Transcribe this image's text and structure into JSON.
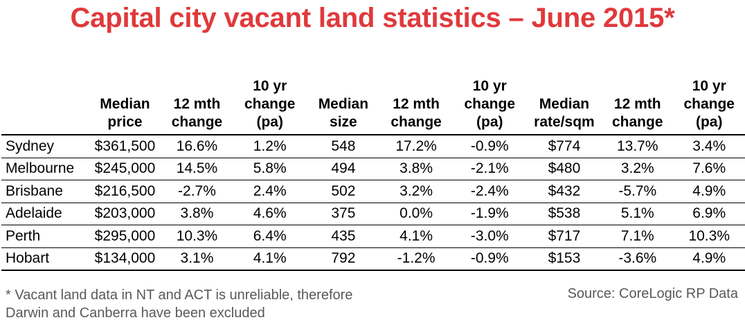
{
  "chart_data": {
    "type": "table",
    "title": "Capital city vacant land statistics – June 2015*",
    "columns": [
      "",
      "Median\nprice",
      "12 mth\nchange",
      "10 yr\nchange\n(pa)",
      "Median\nsize",
      "12 mth\nchange",
      "10 yr\nchange\n(pa)",
      "Median\nrate/sqm",
      "12 mth\nchange",
      "10 yr\nchange\n(pa)"
    ],
    "rows": [
      [
        "Sydney",
        "$361,500",
        "16.6%",
        "1.2%",
        "548",
        "17.2%",
        "-0.9%",
        "$774",
        "13.7%",
        "3.4%"
      ],
      [
        "Melbourne",
        "$245,000",
        "14.5%",
        "5.8%",
        "494",
        "3.8%",
        "-2.1%",
        "$480",
        "3.2%",
        "7.6%"
      ],
      [
        "Brisbane",
        "$216,500",
        "-2.7%",
        "2.4%",
        "502",
        "3.2%",
        "-2.4%",
        "$432",
        "-5.7%",
        "4.9%"
      ],
      [
        "Adelaide",
        "$203,000",
        "3.8%",
        "4.6%",
        "375",
        "0.0%",
        "-1.9%",
        "$538",
        "5.1%",
        "6.9%"
      ],
      [
        "Perth",
        "$295,000",
        "10.3%",
        "6.4%",
        "435",
        "4.1%",
        "-3.0%",
        "$717",
        "7.1%",
        "10.3%"
      ],
      [
        "Hobart",
        "$134,000",
        "3.1%",
        "4.1%",
        "792",
        "-1.2%",
        "-0.9%",
        "$153",
        "-3.6%",
        "4.9%"
      ]
    ]
  },
  "footnote": "* Vacant land data in NT and ACT is unreliable, therefore\nDarwin and Canberra have been excluded",
  "source": "Source: CoreLogic RP Data",
  "colors": {
    "title": "#e0393b",
    "footnote": "#595959"
  }
}
